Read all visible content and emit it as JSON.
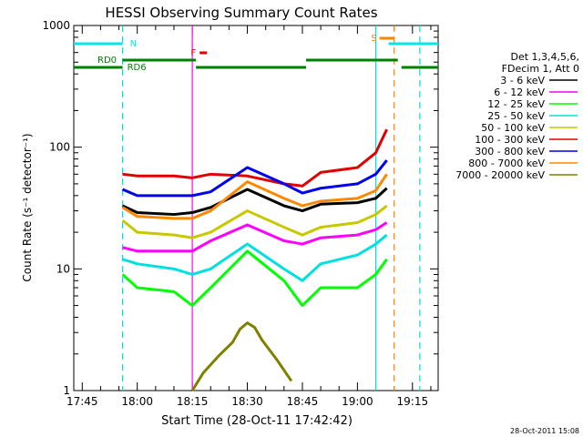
{
  "chart_data": {
    "type": "line",
    "title": "HESSI Observing Summary Count Rates",
    "ylabel": "Count Rate (s⁻¹ detector⁻¹)",
    "xlabel": "Start Time (28-Oct-11 17:42:42)",
    "yscale": "log",
    "ylim": [
      1,
      1000
    ],
    "xlim_minutes": [
      "17:42:42",
      "19:22:00"
    ],
    "x_ticks": [
      "17:45",
      "18:00",
      "18:15",
      "18:30",
      "18:45",
      "19:00",
      "19:15"
    ],
    "y_ticks": [
      "1",
      "10",
      "100",
      "1000"
    ],
    "legend": {
      "placement": "right",
      "header": [
        "Det 1,3,4,5,6,",
        "FDecim 1, Att 0"
      ],
      "entries": [
        {
          "label": "3 - 6 keV",
          "color": "#000000"
        },
        {
          "label": "6 - 12 keV",
          "color": "#ff00ff"
        },
        {
          "label": "12 - 25 keV",
          "color": "#00ff00"
        },
        {
          "label": "25 - 50 keV",
          "color": "#00e0e0"
        },
        {
          "label": "50 - 100 keV",
          "color": "#c8c800"
        },
        {
          "label": "100 - 300 keV",
          "color": "#e00000"
        },
        {
          "label": "300 - 800 keV",
          "color": "#0000ee"
        },
        {
          "label": "800 - 7000 keV",
          "color": "#ff8800"
        },
        {
          "label": "7000 - 20000 keV",
          "color": "#808000"
        }
      ]
    },
    "segment_flags": [
      {
        "label": "N",
        "color": "#00e8e8"
      },
      {
        "label": "F",
        "color": "#e00000"
      },
      {
        "label": "S",
        "color": "#ff8800"
      },
      {
        "label": "RD0",
        "color": "#008000"
      },
      {
        "label": "RD6",
        "color": "#008000"
      }
    ],
    "series": [
      {
        "name": "3 - 6 keV",
        "color": "#000000",
        "x": [
          "17:56",
          "18:00",
          "18:10",
          "18:15",
          "18:20",
          "18:30",
          "18:40",
          "18:45",
          "18:50",
          "19:00",
          "19:05",
          "19:08"
        ],
        "y": [
          33,
          29,
          28,
          29,
          32,
          45,
          33,
          30,
          34,
          35,
          38,
          46
        ]
      },
      {
        "name": "6 - 12 keV",
        "color": "#ff00ff",
        "x": [
          "17:56",
          "18:00",
          "18:10",
          "18:15",
          "18:20",
          "18:30",
          "18:40",
          "18:45",
          "18:50",
          "19:00",
          "19:05",
          "19:08"
        ],
        "y": [
          15,
          14,
          14,
          14,
          17,
          23,
          17,
          16,
          18,
          19,
          21,
          24
        ]
      },
      {
        "name": "12 - 25 keV",
        "color": "#00ff00",
        "x": [
          "17:56",
          "18:00",
          "18:10",
          "18:15",
          "18:20",
          "18:30",
          "18:40",
          "18:45",
          "18:50",
          "19:00",
          "19:05",
          "19:08"
        ],
        "y": [
          9,
          7,
          6.5,
          5,
          7,
          14,
          8,
          5,
          7,
          7,
          9,
          12
        ]
      },
      {
        "name": "25 - 50 keV",
        "color": "#00e0e0",
        "x": [
          "17:56",
          "18:00",
          "18:10",
          "18:15",
          "18:20",
          "18:30",
          "18:40",
          "18:45",
          "18:50",
          "19:00",
          "19:05",
          "19:08"
        ],
        "y": [
          12,
          11,
          10,
          9,
          10,
          16,
          10,
          8,
          11,
          13,
          16,
          19
        ]
      },
      {
        "name": "50 - 100 keV",
        "color": "#c8c800",
        "x": [
          "17:56",
          "18:00",
          "18:10",
          "18:15",
          "18:20",
          "18:30",
          "18:40",
          "18:45",
          "18:50",
          "19:00",
          "19:05",
          "19:08"
        ],
        "y": [
          25,
          20,
          19,
          18,
          20,
          30,
          22,
          19,
          22,
          24,
          28,
          33
        ]
      },
      {
        "name": "100 - 300 keV",
        "color": "#e00000",
        "x": [
          "17:56",
          "18:00",
          "18:10",
          "18:15",
          "18:20",
          "18:30",
          "18:40",
          "18:45",
          "18:50",
          "19:00",
          "19:05",
          "19:08"
        ],
        "y": [
          60,
          58,
          58,
          56,
          60,
          58,
          50,
          48,
          62,
          68,
          90,
          140
        ]
      },
      {
        "name": "300 - 800 keV",
        "color": "#0000ee",
        "x": [
          "17:56",
          "18:00",
          "18:10",
          "18:15",
          "18:20",
          "18:30",
          "18:40",
          "18:45",
          "18:50",
          "19:00",
          "19:05",
          "19:08"
        ],
        "y": [
          45,
          40,
          40,
          40,
          43,
          68,
          50,
          42,
          46,
          50,
          60,
          78
        ]
      },
      {
        "name": "800 - 7000 keV",
        "color": "#ff8800",
        "x": [
          "17:56",
          "18:00",
          "18:10",
          "18:15",
          "18:20",
          "18:30",
          "18:40",
          "18:45",
          "18:50",
          "19:00",
          "19:05",
          "19:08"
        ],
        "y": [
          32,
          27,
          26,
          26,
          30,
          52,
          38,
          33,
          36,
          38,
          44,
          60
        ]
      },
      {
        "name": "7000 - 20000 keV",
        "color": "#808000",
        "x": [
          "18:15",
          "18:18",
          "18:22",
          "18:26",
          "18:28",
          "18:30",
          "18:32",
          "18:34",
          "18:38",
          "18:42"
        ],
        "y": [
          1,
          1.4,
          1.9,
          2.5,
          3.2,
          3.6,
          3.3,
          2.6,
          1.8,
          1.2
        ]
      }
    ]
  },
  "footer": {
    "timestamp": "28-Oct-2011 15:08"
  }
}
